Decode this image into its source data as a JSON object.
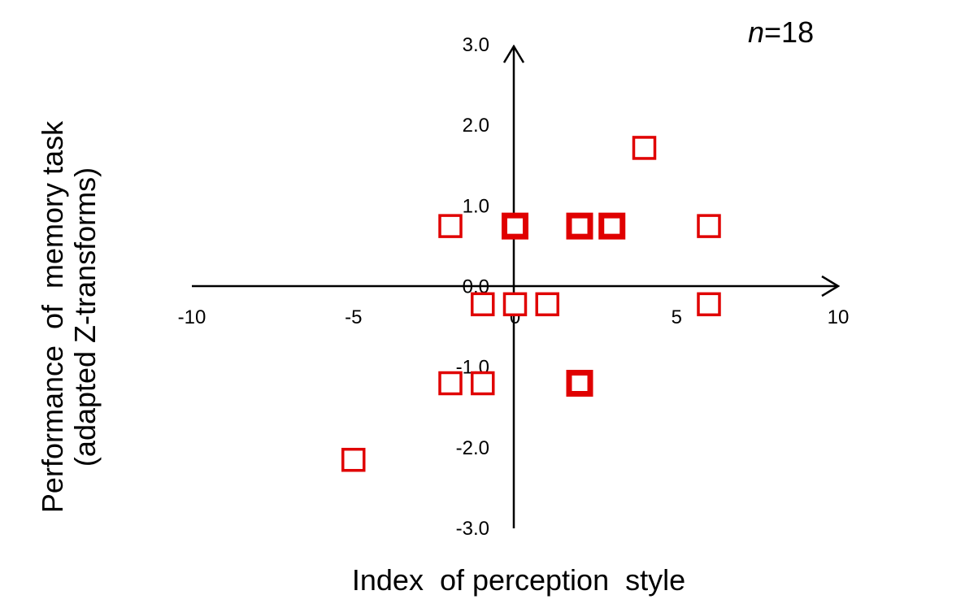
{
  "chart_data": {
    "type": "scatter",
    "xlabel": "Index  of perception  style",
    "ylabel_lines": [
      "Performance  of  memory task",
      "(adapted Z-transforms)"
    ],
    "annotation": {
      "italic": "n",
      "text": "=18"
    },
    "xlim": [
      -10,
      10
    ],
    "ylim": [
      -3,
      3
    ],
    "x_ticks": [
      {
        "value": -10,
        "label": "-10"
      },
      {
        "value": -5,
        "label": "-5"
      },
      {
        "value": 0,
        "label": "0"
      },
      {
        "value": 5,
        "label": "5"
      },
      {
        "value": 10,
        "label": "10"
      }
    ],
    "y_ticks": [
      {
        "value": 3,
        "label": "3.0"
      },
      {
        "value": 2,
        "label": "2.0"
      },
      {
        "value": 1,
        "label": "1.0"
      },
      {
        "value": 0,
        "label": "0.0"
      },
      {
        "value": -1,
        "label": "-1.0"
      },
      {
        "value": -2,
        "label": "-2.0"
      },
      {
        "value": -3,
        "label": "-3.0"
      }
    ],
    "marker_color": "#e00000",
    "points": [
      {
        "x": -5,
        "y": -2.15,
        "bold": false
      },
      {
        "x": -2,
        "y": 0.75,
        "bold": false
      },
      {
        "x": -2,
        "y": -1.2,
        "bold": false
      },
      {
        "x": -1,
        "y": -1.2,
        "bold": false
      },
      {
        "x": -1,
        "y": -0.22,
        "bold": false
      },
      {
        "x": 0,
        "y": -0.22,
        "bold": false
      },
      {
        "x": 1,
        "y": -0.22,
        "bold": false
      },
      {
        "x": 0,
        "y": 0.75,
        "bold": true
      },
      {
        "x": 2,
        "y": 0.75,
        "bold": true
      },
      {
        "x": 3,
        "y": 0.75,
        "bold": true
      },
      {
        "x": 2,
        "y": -1.2,
        "bold": true
      },
      {
        "x": 4,
        "y": 1.72,
        "bold": false
      },
      {
        "x": 6,
        "y": 0.75,
        "bold": false
      },
      {
        "x": 6,
        "y": -0.22,
        "bold": false
      }
    ]
  }
}
